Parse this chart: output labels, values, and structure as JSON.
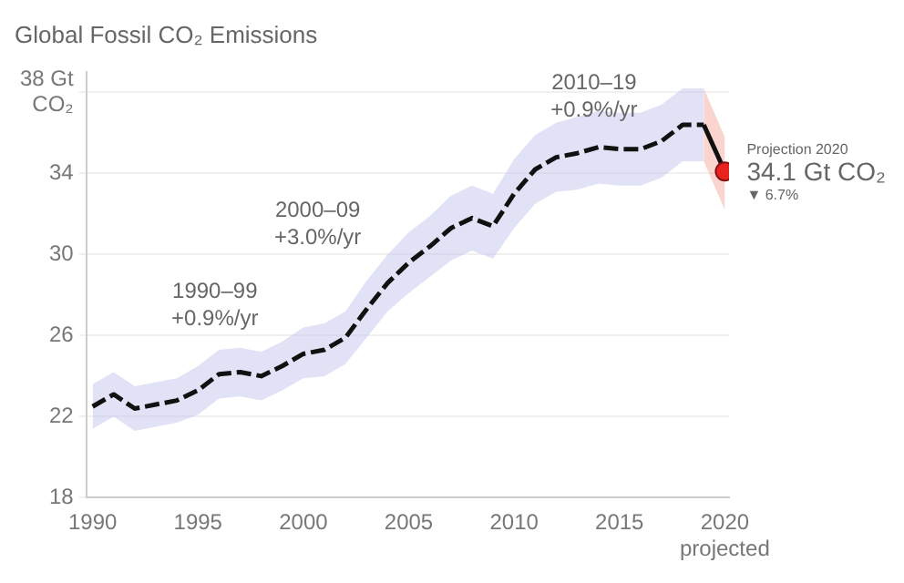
{
  "chart_data": {
    "type": "line",
    "title": "Global Fossil CO₂ Emissions",
    "xlim": [
      1989.7,
      2020.2
    ],
    "xticks": [
      1990,
      1995,
      2000,
      2005,
      2010,
      2015,
      {
        "value": 2020,
        "label": "2020\nprojected"
      }
    ],
    "ylim": [
      18,
      39
    ],
    "yticks": [
      18,
      22,
      26,
      30,
      34,
      {
        "value": 38,
        "label": "38 Gt\nCO₂"
      }
    ],
    "grid": "y",
    "legend": false,
    "series": [
      {
        "color": "#111111",
        "line_style": "dashed",
        "marker": "none",
        "x": [
          1990,
          1991,
          1992,
          1993,
          1994,
          1995,
          1996,
          1997,
          1998,
          1999,
          2000,
          2001,
          2002,
          2003,
          2004,
          2005,
          2006,
          2007,
          2008,
          2009,
          2010,
          2011,
          2012,
          2013,
          2014,
          2015,
          2016,
          2017,
          2018,
          2019
        ],
        "values": [
          22.5,
          23.1,
          22.4,
          22.6,
          22.8,
          23.3,
          24.1,
          24.2,
          24.0,
          24.5,
          25.1,
          25.3,
          25.9,
          27.3,
          28.6,
          29.6,
          30.4,
          31.3,
          31.8,
          31.4,
          33.0,
          34.2,
          34.8,
          35.0,
          35.3,
          35.2,
          35.2,
          35.6,
          36.4,
          36.4
        ],
        "lower": [
          21.4,
          22.0,
          21.3,
          21.5,
          21.7,
          22.1,
          22.9,
          23.0,
          22.8,
          23.3,
          23.9,
          24.0,
          24.6,
          25.9,
          27.2,
          28.1,
          28.9,
          29.7,
          30.2,
          29.8,
          31.3,
          32.5,
          33.1,
          33.2,
          33.5,
          33.4,
          33.4,
          33.8,
          34.6,
          34.6
        ],
        "upper": [
          23.6,
          24.2,
          23.5,
          23.7,
          23.9,
          24.5,
          25.3,
          25.4,
          25.2,
          25.7,
          26.4,
          26.6,
          27.2,
          28.7,
          30.0,
          31.1,
          31.9,
          32.9,
          33.4,
          33.0,
          34.7,
          35.9,
          36.5,
          36.8,
          37.1,
          37.0,
          37.0,
          37.4,
          38.2,
          38.2
        ]
      },
      {
        "type": "line",
        "color": "#111111",
        "line_style": "solid",
        "marker": "none",
        "x": [
          2019,
          2020
        ],
        "values": [
          36.4,
          34.1
        ],
        "lower": [
          34.6,
          32.2
        ],
        "upper": [
          38.2,
          35.8
        ]
      },
      {
        "type": "scatter",
        "color": "#e8231f",
        "marker": "circle",
        "x": [
          2020
        ],
        "values": [
          34.1
        ]
      }
    ],
    "annotations": [
      "1990–99\n+0.9%/yr",
      "2000–09\n+3.0%/yr",
      "2010–19\n+0.9%/yr",
      {
        "text": "Projection 2020\n34.1 Gt CO₂\n▼ 6.7%",
        "x": 2020,
        "y": 34.1
      }
    ]
  }
}
